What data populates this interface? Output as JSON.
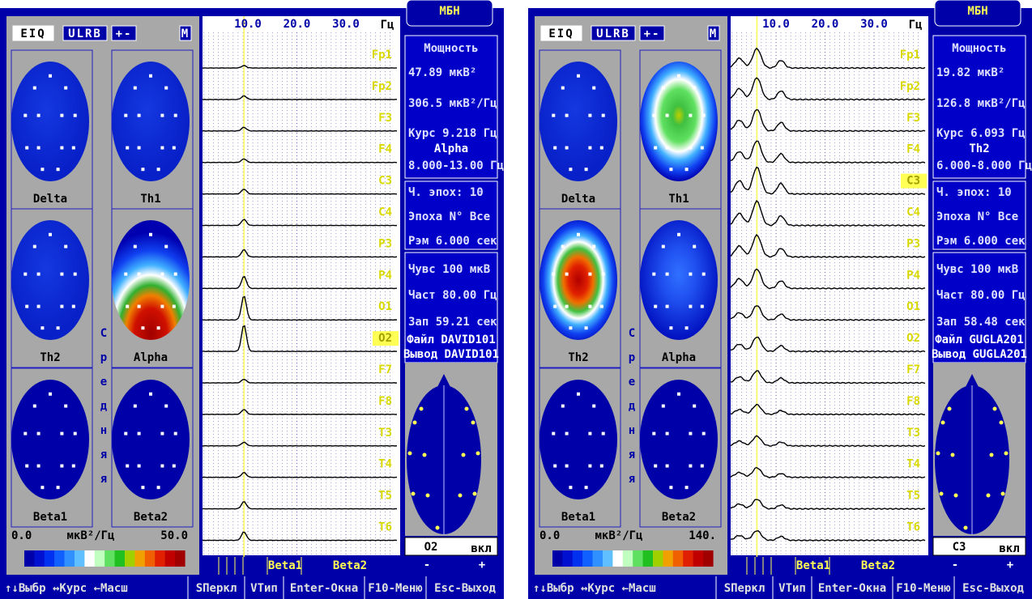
{
  "panels": [
    {
      "toolbar": [
        "EIQ",
        "ULRB",
        "+-",
        "M"
      ],
      "maps": [
        "Delta",
        "Th1",
        "Th2",
        "Alpha",
        "Beta1",
        "Beta2"
      ],
      "vertical_label": [
        "С",
        "р",
        "е",
        "д",
        "н",
        "я",
        "я"
      ],
      "scale": {
        "min": "0.0",
        "unit": "мкВ²/Гц",
        "max": "50.0"
      },
      "freq_ticks": [
        "10.0",
        "20.0",
        "30.0"
      ],
      "freq_unit": "Гц",
      "channels": [
        "Fp1",
        "Fp2",
        "F3",
        "F4",
        "C3",
        "C4",
        "P3",
        "P4",
        "O1",
        "O2",
        "F7",
        "F8",
        "T3",
        "T4",
        "T5",
        "T6"
      ],
      "selected_channel": 9,
      "bands": [
        "Beta1",
        "Beta2"
      ],
      "logo": "МБН",
      "info": [
        "Мощность",
        "47.89 мкВ²",
        "306.5 мкВ²/Гц",
        "Курс 9.218 Гц",
        "Alpha",
        "8.000-13.00 Гц",
        "Ч. эпох:  10",
        "Эпоха N°  Все",
        "Рэм 6.000 сек",
        "Чувс  100 мкВ",
        "Част 80.00 Гц",
        "Зап  59.21 сек",
        "Файл DAVID101",
        "Вывод DAVID101"
      ],
      "head": {
        "electrode": "O2",
        "state": "вкл",
        "minus": "-",
        "plus": "+"
      },
      "menu": [
        "↑↓Выбр ↔Курс ←Масш",
        "SПеркл",
        "VТип",
        "Enter-Окна",
        "F10-Меню",
        "Esc-Выход"
      ]
    },
    {
      "toolbar": [
        "EIQ",
        "ULRB",
        "+-",
        "M"
      ],
      "maps": [
        "Delta",
        "Th1",
        "Th2",
        "Alpha",
        "Beta1",
        "Beta2"
      ],
      "vertical_label": [
        "С",
        "р",
        "е",
        "д",
        "н",
        "я",
        "я"
      ],
      "scale": {
        "min": "0.0",
        "unit": "мкВ²/Гц",
        "max": "140."
      },
      "freq_ticks": [
        "10.0",
        "20.0",
        "30.0"
      ],
      "freq_unit": "Гц",
      "channels": [
        "Fp1",
        "Fp2",
        "F3",
        "F4",
        "C3",
        "C4",
        "P3",
        "P4",
        "O1",
        "O2",
        "F7",
        "F8",
        "T3",
        "T4",
        "T5",
        "T6"
      ],
      "selected_channel": 4,
      "bands": [
        "Beta1",
        "Beta2"
      ],
      "logo": "МБН",
      "info": [
        "Мощность",
        "19.82 мкВ²",
        "126.8 мкВ²/Гц",
        "Курс 6.093 Гц",
        "Th2",
        "6.000-8.000 Гц",
        "Ч. эпох:  10",
        "Эпоха N°  Все",
        "Рэм 6.000 сек",
        "Чувс  100 мкВ",
        "Част 80.00 Гц",
        "Зап  58.48 сек",
        "Файл GUGLA201",
        "Вывод GUGLA201"
      ],
      "head": {
        "electrode": "C3",
        "state": "вкл",
        "minus": "-",
        "plus": "+"
      },
      "menu": [
        "↑↓Выбр ↔Курс ←Масш",
        "SПеркл",
        "VТип",
        "Enter-Окна",
        "F10-Меню",
        "Esc-Выход"
      ]
    }
  ]
}
